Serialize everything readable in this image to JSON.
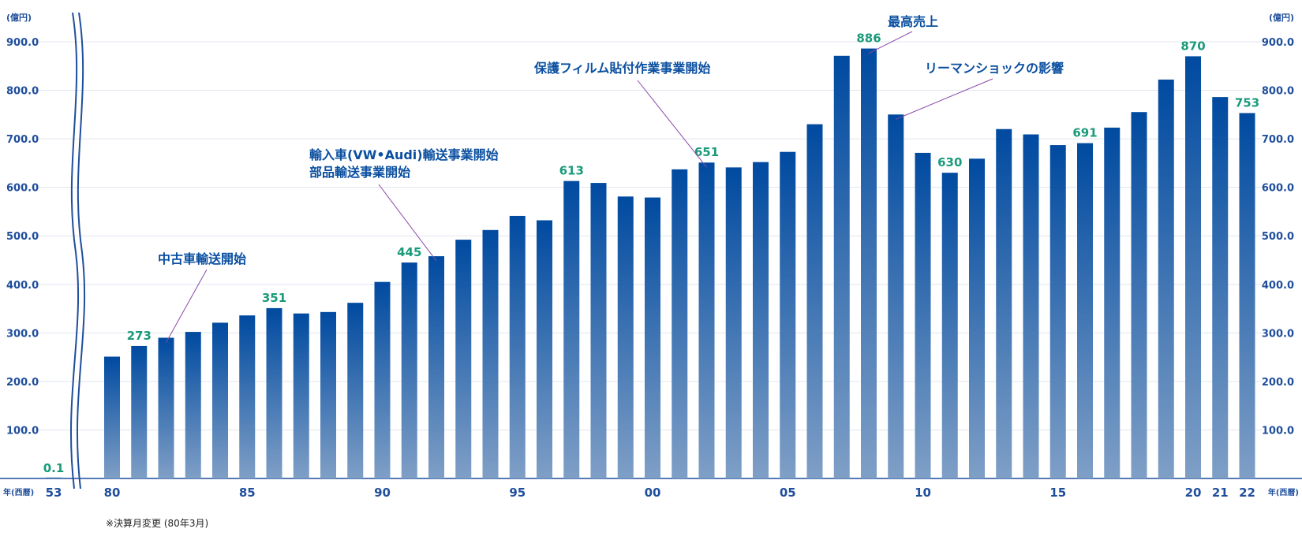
{
  "chart_data": {
    "type": "bar",
    "y_unit_label": "(億円)",
    "x_unit_label": "年(西暦)",
    "ylim": [
      0,
      960
    ],
    "y_ticks": [
      "100.0",
      "200.0",
      "300.0",
      "400.0",
      "500.0",
      "600.0",
      "700.0",
      "800.0",
      "900.0"
    ],
    "grid": true,
    "colors": {
      "bar_top": "#004aa0",
      "bar_bottom": "#7f9fc6",
      "value_label": "#1a9a7a",
      "text": "#1f4e9c",
      "annotation": "#0a4fa0",
      "leader": "#8a4aa8"
    },
    "categories": [
      "53",
      "80",
      "81",
      "82",
      "83",
      "84",
      "85",
      "86",
      "87",
      "88",
      "89",
      "90",
      "91",
      "92",
      "93",
      "94",
      "95",
      "96",
      "97",
      "98",
      "99",
      "00",
      "01",
      "02",
      "03",
      "04",
      "05",
      "06",
      "07",
      "08",
      "09",
      "10",
      "11",
      "12",
      "13",
      "14",
      "15",
      "16",
      "17",
      "18",
      "19",
      "20",
      "21",
      "22"
    ],
    "values": [
      0.1,
      251,
      273,
      290,
      302,
      321,
      336,
      351,
      340,
      343,
      362,
      405,
      445,
      458,
      492,
      512,
      541,
      532,
      613,
      609,
      581,
      579,
      637,
      651,
      641,
      652,
      673,
      730,
      871,
      886,
      750,
      671,
      630,
      659,
      720,
      709,
      687,
      691,
      723,
      755,
      822,
      870,
      786,
      753
    ],
    "x_tick_labels": [
      {
        "category": "53",
        "label": "53"
      },
      {
        "category": "80",
        "label": "80"
      },
      {
        "category": "85",
        "label": "85"
      },
      {
        "category": "90",
        "label": "90"
      },
      {
        "category": "95",
        "label": "95"
      },
      {
        "category": "00",
        "label": "00"
      },
      {
        "category": "05",
        "label": "05"
      },
      {
        "category": "10",
        "label": "10"
      },
      {
        "category": "15",
        "label": "15"
      },
      {
        "category": "20",
        "label": "20"
      },
      {
        "category": "21",
        "label": "21"
      },
      {
        "category": "22",
        "label": "22"
      }
    ],
    "data_labels": [
      {
        "category": "53",
        "text": "0.1"
      },
      {
        "category": "81",
        "text": "273"
      },
      {
        "category": "86",
        "text": "351"
      },
      {
        "category": "91",
        "text": "445"
      },
      {
        "category": "97",
        "text": "613"
      },
      {
        "category": "02",
        "text": "651"
      },
      {
        "category": "08",
        "text": "886"
      },
      {
        "category": "11",
        "text": "630"
      },
      {
        "category": "16",
        "text": "691"
      },
      {
        "category": "20",
        "text": "870"
      },
      {
        "category": "22",
        "text": "753"
      }
    ],
    "annotations": [
      {
        "lines": [
          "中古車輸送開始"
        ],
        "target": "82"
      },
      {
        "lines": [
          "輸入車(VW•Audi)輸送事業開始",
          "部品輸送事業開始"
        ],
        "target": "92"
      },
      {
        "lines": [
          "保護フィルム貼付作業事業開始"
        ],
        "target": "02"
      },
      {
        "lines": [
          "最高売上"
        ],
        "target": "08"
      },
      {
        "lines": [
          "リーマンショックの影響"
        ],
        "target": "09"
      }
    ],
    "footnote": "※決算月変更 (80年3月)"
  }
}
